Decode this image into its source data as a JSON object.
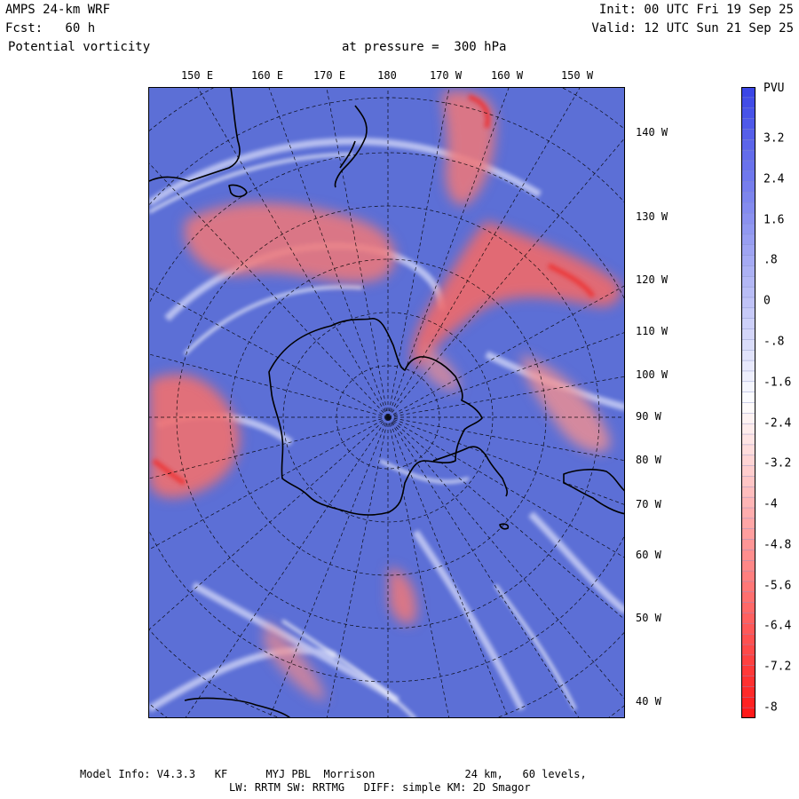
{
  "header": {
    "model": "AMPS 24-km WRF",
    "forecast": "Fcst:   60 h",
    "field": "Potential vorticity",
    "level": "at pressure =  300 hPa",
    "init": "Init: 00 UTC Fri 19 Sep 25",
    "valid": "Valid: 12 UTC Sun 21 Sep 25"
  },
  "top_longitude_labels": [
    "150 E",
    "160 E",
    "170 E",
    "180",
    "170 W",
    "160 W",
    "150 W"
  ],
  "right_longitude_labels": [
    "140 W",
    "130 W",
    "120 W",
    "110 W",
    "100 W",
    "90 W",
    "80 W",
    "70 W",
    "60 W",
    "50 W",
    "40 W"
  ],
  "colorbar": {
    "unit": "PVU",
    "labels": [
      "3.2",
      "2.4",
      "1.6",
      ".8",
      "0",
      "-.8",
      "-1.6",
      "-2.4",
      "-3.2",
      "-4",
      "-4.8",
      "-5.6",
      "-6.4",
      "-7.2",
      "-8"
    ],
    "range": [
      -8,
      4
    ],
    "colors": {
      "positive": "#3b46e6",
      "mid": "#ffffff",
      "negative": "#ff1a1a"
    }
  },
  "footer": {
    "line1": "Model Info: V4.3.3   KF      MYJ PBL  Morrison              24 km,   60 levels,",
    "line2": "LW: RRTM SW: RRTMG   DIFF: simple KM: 2D Smagor"
  },
  "map": {
    "background_color": "#5c6fd6",
    "anomaly_color": "#f07070",
    "coast_color": "#000000"
  }
}
